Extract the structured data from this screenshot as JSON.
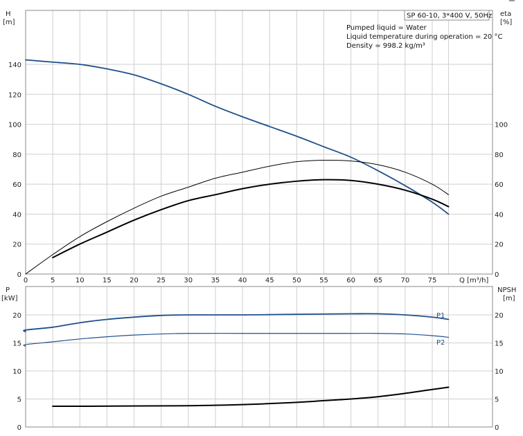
{
  "chart_data": {
    "type": "line",
    "title_box": "SP 60-10, 3*400 V, 50Hz",
    "info_lines": [
      "Pumped liquid = Water",
      "Liquid temperature during operation = 20 °C",
      "Density = 998.2 kg/m³"
    ],
    "x": {
      "label": "Q [m³/h]",
      "ticks": [
        0,
        5,
        10,
        15,
        20,
        25,
        30,
        35,
        40,
        45,
        50,
        55,
        60,
        65,
        70,
        75
      ],
      "range": [
        0,
        80
      ]
    },
    "top_panel": {
      "left_axis": {
        "label_line1": "H",
        "label_line2": "[m]",
        "range": [
          0,
          160
        ],
        "ticks": [
          0,
          20,
          40,
          60,
          80,
          100,
          120,
          140
        ]
      },
      "right_axis": {
        "label_line1": "eta",
        "label_line2": "[%]",
        "range": [
          0,
          160
        ],
        "ticks": [
          0,
          20,
          40,
          60,
          80,
          100
        ]
      },
      "series": [
        {
          "id": "head",
          "color": "#1f4f8b",
          "points": [
            [
              0,
              143
            ],
            [
              5,
              141.5
            ],
            [
              10,
              140
            ],
            [
              15,
              137
            ],
            [
              20,
              133
            ],
            [
              25,
              127
            ],
            [
              30,
              120
            ],
            [
              35,
              112
            ],
            [
              40,
              105
            ],
            [
              45,
              98.5
            ],
            [
              50,
              92
            ],
            [
              55,
              85
            ],
            [
              60,
              78
            ],
            [
              65,
              69
            ],
            [
              70,
              59
            ],
            [
              75,
              48
            ],
            [
              78,
              40
            ]
          ]
        },
        {
          "id": "eta-thin",
          "color": "#000000",
          "points": [
            [
              0,
              0
            ],
            [
              5,
              13
            ],
            [
              10,
              25
            ],
            [
              15,
              35
            ],
            [
              20,
              44
            ],
            [
              25,
              52
            ],
            [
              30,
              58
            ],
            [
              35,
              64
            ],
            [
              40,
              68
            ],
            [
              45,
              72
            ],
            [
              50,
              75
            ],
            [
              55,
              76
            ],
            [
              60,
              75.5
            ],
            [
              65,
              73
            ],
            [
              70,
              68
            ],
            [
              75,
              60
            ],
            [
              78,
              53
            ]
          ]
        },
        {
          "id": "eta-thick",
          "color": "#000000",
          "points": [
            [
              5,
              11
            ],
            [
              10,
              20
            ],
            [
              15,
              28
            ],
            [
              20,
              36
            ],
            [
              25,
              43
            ],
            [
              30,
              49
            ],
            [
              35,
              53
            ],
            [
              40,
              57
            ],
            [
              45,
              60
            ],
            [
              50,
              62
            ],
            [
              55,
              63
            ],
            [
              60,
              62.5
            ],
            [
              65,
              60
            ],
            [
              70,
              56
            ],
            [
              75,
              50
            ],
            [
              78,
              45
            ]
          ]
        }
      ]
    },
    "bottom_panel": {
      "left_axis": {
        "label_line1": "P",
        "label_line2": "[kW]",
        "range": [
          0,
          25
        ],
        "ticks": [
          0,
          5,
          10,
          15,
          20
        ]
      },
      "right_axis": {
        "label_line1": "NPSH",
        "label_line2": "[m]",
        "range": [
          0,
          25
        ],
        "ticks": [
          0,
          5,
          10,
          15,
          20
        ]
      },
      "series": [
        {
          "id": "P1",
          "name": "P1",
          "color": "#1f4f8b",
          "points": [
            [
              -5,
              17
            ],
            [
              0,
              17.3
            ],
            [
              5,
              17.8
            ],
            [
              10,
              18.6
            ],
            [
              15,
              19.2
            ],
            [
              20,
              19.6
            ],
            [
              25,
              19.9
            ],
            [
              30,
              20
            ],
            [
              40,
              20
            ],
            [
              50,
              20.1
            ],
            [
              60,
              20.2
            ],
            [
              65,
              20.2
            ],
            [
              70,
              20
            ],
            [
              75,
              19.6
            ],
            [
              78,
              19.2
            ]
          ]
        },
        {
          "id": "P2",
          "name": "P2",
          "color": "#1f4f8b",
          "points": [
            [
              -5,
              14.4
            ],
            [
              0,
              14.7
            ],
            [
              5,
              15.2
            ],
            [
              10,
              15.7
            ],
            [
              15,
              16.1
            ],
            [
              20,
              16.4
            ],
            [
              25,
              16.6
            ],
            [
              30,
              16.7
            ],
            [
              40,
              16.7
            ],
            [
              50,
              16.7
            ],
            [
              60,
              16.7
            ],
            [
              65,
              16.7
            ],
            [
              70,
              16.6
            ],
            [
              75,
              16.3
            ],
            [
              78,
              16
            ]
          ]
        },
        {
          "id": "npsh",
          "color": "#000000",
          "points": [
            [
              5,
              3.7
            ],
            [
              10,
              3.7
            ],
            [
              20,
              3.75
            ],
            [
              30,
              3.8
            ],
            [
              40,
              4.0
            ],
            [
              50,
              4.4
            ],
            [
              55,
              4.7
            ],
            [
              60,
              5.0
            ],
            [
              65,
              5.4
            ],
            [
              70,
              6.0
            ],
            [
              75,
              6.7
            ],
            [
              78,
              7.1
            ]
          ]
        }
      ]
    }
  }
}
